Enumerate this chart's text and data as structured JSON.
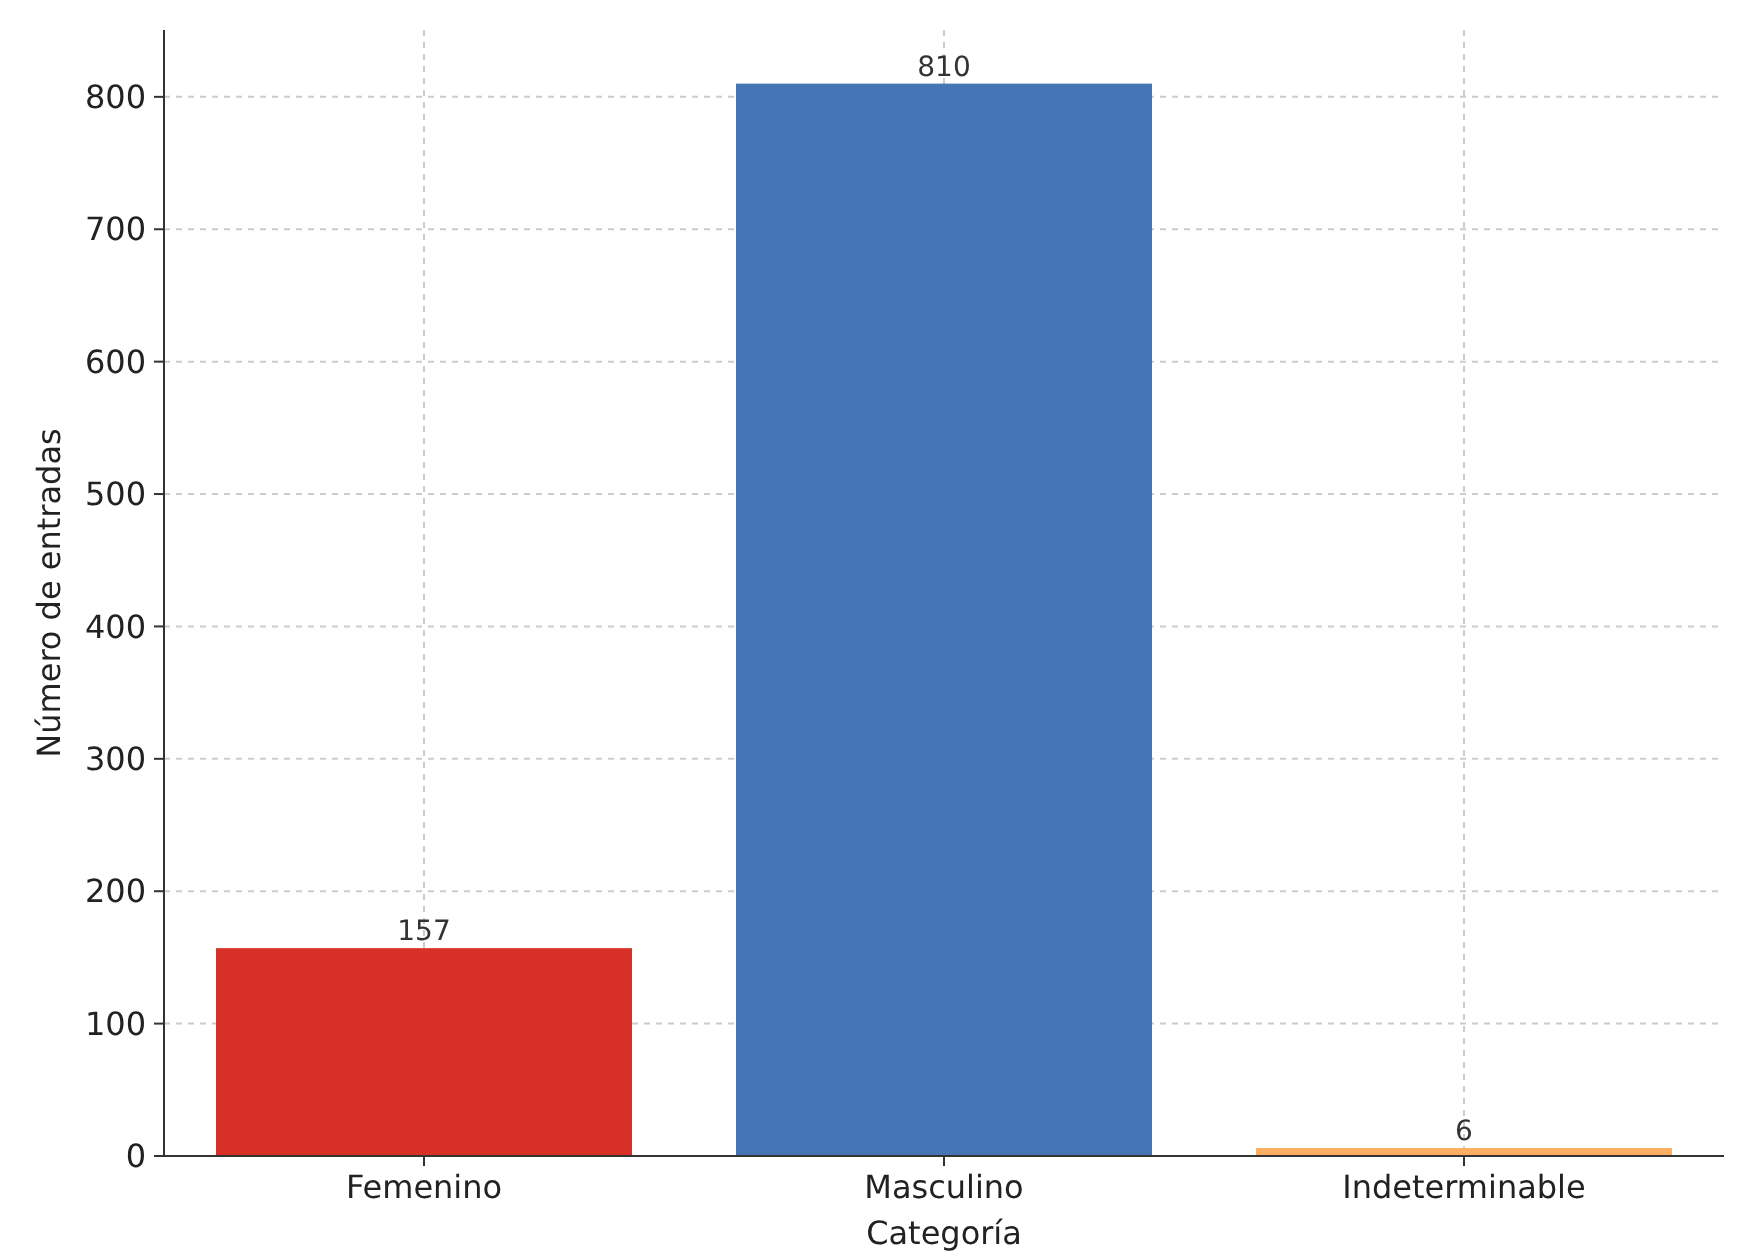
{
  "chart_data": {
    "type": "bar",
    "xlabel": "Categoría",
    "ylabel": "Número de entradas",
    "categories": [
      "Femenino",
      "Masculino",
      "Indeterminable"
    ],
    "values": [
      157,
      810,
      6
    ],
    "colors": [
      "#d73027",
      "#4575b4",
      "#fdae61"
    ],
    "data_labels": true,
    "ylim": [
      0,
      850.5
    ],
    "yticks": [
      0,
      100,
      200,
      300,
      400,
      500,
      600,
      700,
      800
    ],
    "grid": true
  }
}
